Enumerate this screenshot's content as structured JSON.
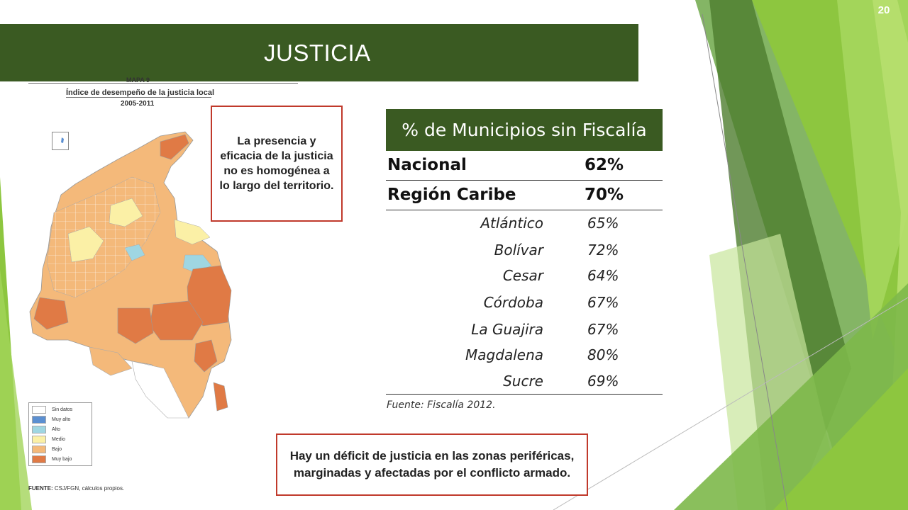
{
  "slide": {
    "page_number": "20",
    "title": "JUSTICIA",
    "colors": {
      "title_bar": "#3a5a22",
      "callout_border": "#c0392b",
      "accent_green": "#8dc63f"
    }
  },
  "map": {
    "kicker": "MAPA 9",
    "title": "Índice de desempeño de la justicia local",
    "years": "2005-2011",
    "legend": [
      {
        "label": "Sin datos",
        "color": "#ffffff"
      },
      {
        "label": "Muy alto",
        "color": "#5b8fd1"
      },
      {
        "label": "Alto",
        "color": "#9fd6e2"
      },
      {
        "label": "Medio",
        "color": "#fbf0a6"
      },
      {
        "label": "Bajo",
        "color": "#f4b97a"
      },
      {
        "label": "Muy bajo",
        "color": "#e07a45"
      }
    ],
    "source_label": "FUENTE:",
    "source_text": "CSJ/FGN, cálculos propios."
  },
  "callouts": {
    "top": "La presencia y eficacia de la justicia no es homogénea a lo largo del territorio.",
    "bottom": "Hay un déficit de justicia en las zonas periféricas, marginadas y afectadas por el conflicto armado."
  },
  "table": {
    "header": "% de Municipios sin Fiscalía",
    "main_rows": [
      {
        "label": "Nacional",
        "value": "62%"
      },
      {
        "label": "Región Caribe",
        "value": "70%"
      }
    ],
    "sub_rows": [
      {
        "label": "Atlántico",
        "value": "65%"
      },
      {
        "label": "Bolívar",
        "value": "72%"
      },
      {
        "label": "Cesar",
        "value": "64%"
      },
      {
        "label": "Córdoba",
        "value": "67%"
      },
      {
        "label": "La Guajira",
        "value": "67%"
      },
      {
        "label": "Magdalena",
        "value": "80%"
      },
      {
        "label": "Sucre",
        "value": "69%"
      }
    ],
    "source": "Fuente: Fiscalía 2012."
  }
}
